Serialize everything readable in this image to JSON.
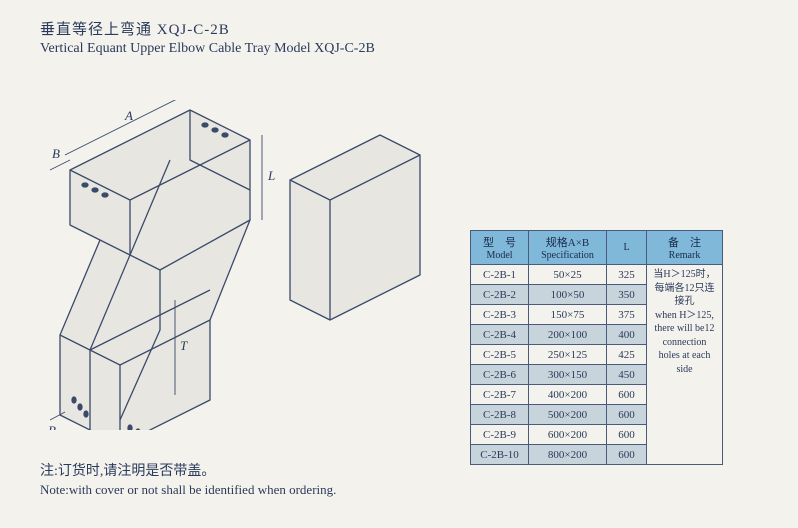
{
  "title": {
    "cn": "垂直等径上弯通 XQJ-C-2B",
    "en": "Vertical Equant Upper Elbow Cable Tray Model XQJ-C-2B"
  },
  "diagram": {
    "labels": {
      "A": "A",
      "B": "B",
      "L": "L",
      "T": "T"
    },
    "stroke": "#3a4a6a",
    "fill_light": "#e8e6e0",
    "fill_mid": "#d0ccc4"
  },
  "table": {
    "headers": {
      "model": {
        "cn": "型　号",
        "en": "Model"
      },
      "spec": {
        "cn": "规格A×B",
        "en": "Specification"
      },
      "l": {
        "cn": "",
        "en": "L"
      },
      "remark": {
        "cn": "备　注",
        "en": "Remark"
      }
    },
    "rows": [
      {
        "model": "C-2B-1",
        "spec": "50×25",
        "l": "325"
      },
      {
        "model": "C-2B-2",
        "spec": "100×50",
        "l": "350"
      },
      {
        "model": "C-2B-3",
        "spec": "150×75",
        "l": "375"
      },
      {
        "model": "C-2B-4",
        "spec": "200×100",
        "l": "400"
      },
      {
        "model": "C-2B-5",
        "spec": "250×125",
        "l": "425"
      },
      {
        "model": "C-2B-6",
        "spec": "300×150",
        "l": "450"
      },
      {
        "model": "C-2B-7",
        "spec": "400×200",
        "l": "600"
      },
      {
        "model": "C-2B-8",
        "spec": "500×200",
        "l": "600"
      },
      {
        "model": "C-2B-9",
        "spec": "600×200",
        "l": "600"
      },
      {
        "model": "C-2B-10",
        "spec": "800×200",
        "l": "600"
      }
    ],
    "remark_text": "当H＞125时，每端各12只连接孔\nwhen H＞125, there will be12 connection holes at each side",
    "header_bg": "#7fb8d8",
    "alt_row_bg": "#c8d4dc",
    "border_color": "#4a5a7a"
  },
  "footnote": {
    "cn": "注:订货时,请注明是否带盖。",
    "en": "Note:with cover or not shall be identified when ordering."
  }
}
